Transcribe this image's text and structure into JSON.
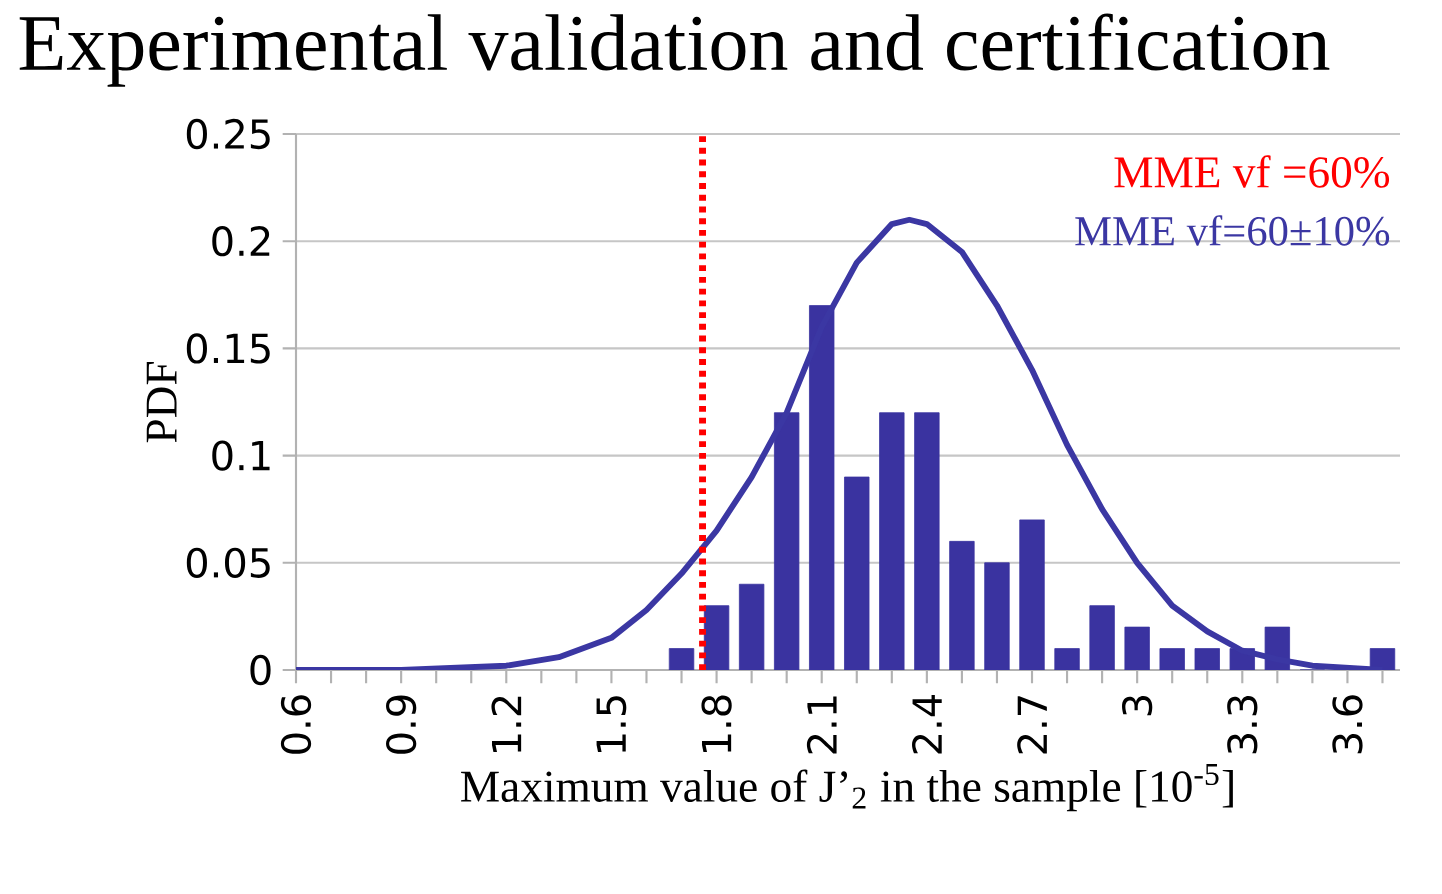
{
  "chart_data": {
    "type": "bar",
    "title": "Experimental validation and certification",
    "xlabel": "Maximum value of J’$_{2}$ in the sample   [10$^{-5}$]",
    "ylabel": "PDF",
    "xlim": [
      0.6,
      3.75
    ],
    "ylim": [
      0,
      0.25
    ],
    "xticks": [
      0.6,
      {
        "value": 0.7,
        "label": null
      },
      {
        "value": 0.8,
        "label": null
      },
      0.9,
      {
        "value": 1.0,
        "label": null
      },
      {
        "value": 1.1,
        "label": null
      },
      1.2,
      {
        "value": 1.3,
        "label": null
      },
      {
        "value": 1.4,
        "label": null
      },
      1.5,
      {
        "value": 1.6,
        "label": null
      },
      {
        "value": 1.7,
        "label": null
      },
      1.8,
      {
        "value": 1.9,
        "label": null
      },
      {
        "value": 2.0,
        "label": null
      },
      2.1,
      {
        "value": 2.2,
        "label": null
      },
      {
        "value": 2.3,
        "label": null
      },
      2.4,
      {
        "value": 2.5,
        "label": null
      },
      {
        "value": 2.6,
        "label": null
      },
      2.7,
      {
        "value": 2.8,
        "label": null
      },
      {
        "value": 2.9,
        "label": null
      },
      {
        "value": 3.0,
        "label": "3"
      },
      {
        "value": 3.1,
        "label": null
      },
      {
        "value": 3.2,
        "label": null
      },
      3.3,
      {
        "value": 3.4,
        "label": null
      },
      {
        "value": 3.5,
        "label": null
      },
      3.6,
      {
        "value": 3.7,
        "label": null
      }
    ],
    "yticks": [
      0,
      0.05,
      0.1,
      0.15,
      0.2,
      0.25
    ],
    "grid": "y",
    "series": [
      {
        "color": "#3a33a0",
        "x": [
          1.7,
          1.8,
          1.9,
          2.0,
          2.1,
          2.2,
          2.3,
          2.4,
          2.5,
          2.6,
          2.7,
          2.8,
          2.9,
          3.0,
          3.1,
          3.2,
          3.3,
          3.4,
          3.5,
          3.6,
          3.7
        ],
        "values": [
          0.01,
          0.03,
          0.04,
          0.12,
          0.17,
          0.09,
          0.12,
          0.12,
          0.06,
          0.05,
          0.07,
          0.01,
          0.03,
          0.02,
          0.01,
          0.01,
          0.01,
          0.02,
          0,
          0,
          0.01
        ]
      },
      {
        "type": "line",
        "name": "MME vf=60±10%",
        "color": "#3b37a3",
        "x": [
          0.6,
          0.9,
          1.2,
          1.35,
          1.5,
          1.6,
          1.7,
          1.8,
          1.9,
          2.0,
          2.1,
          2.2,
          2.3,
          2.35,
          2.4,
          2.5,
          2.6,
          2.7,
          2.8,
          2.9,
          3.0,
          3.1,
          3.2,
          3.3,
          3.4,
          3.5,
          3.6,
          3.7
        ],
        "values": [
          0,
          0,
          0.002,
          0.006,
          0.015,
          0.028,
          0.045,
          0.065,
          0.09,
          0.12,
          0.16,
          0.19,
          0.208,
          0.21,
          0.208,
          0.195,
          0.17,
          0.14,
          0.105,
          0.075,
          0.05,
          0.03,
          0.018,
          0.009,
          0.005,
          0.002,
          0.001,
          0
        ]
      }
    ],
    "annotations": [
      "MME vf =60%"
    ],
    "ref_lines": [
      {
        "axis": "x",
        "value": 1.76,
        "color": "#ff0000",
        "line_style": "dotted"
      }
    ]
  }
}
